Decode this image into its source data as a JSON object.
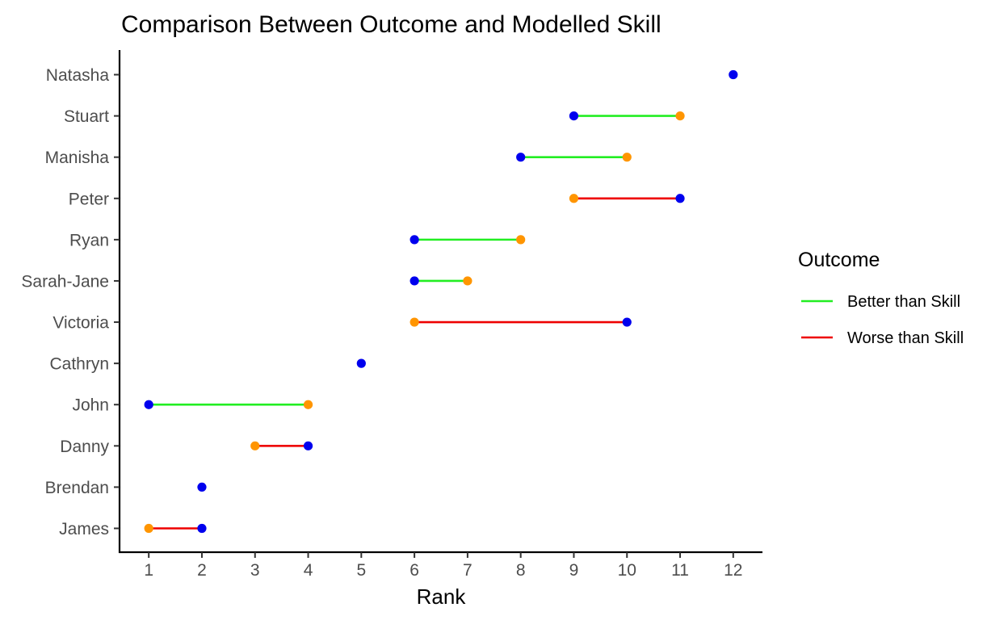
{
  "chart_data": {
    "type": "dumbbell",
    "title": "Comparison Between Outcome and Modelled Skill",
    "xlabel": "Rank",
    "ylabel": "",
    "xlim": [
      0.45,
      12.55
    ],
    "x_ticks": [
      1,
      2,
      3,
      4,
      5,
      6,
      7,
      8,
      9,
      10,
      11,
      12
    ],
    "grid": false,
    "legend": {
      "title": "Outcome",
      "position": "right",
      "entries": [
        {
          "label": "Better than Skill",
          "color": "#22ee22"
        },
        {
          "label": "Worse than Skill",
          "color": "#ee0000"
        }
      ]
    },
    "point_colors": {
      "skill": "#0000ee",
      "outcome": "#ff9500"
    },
    "categories": [
      "Natasha",
      "Stuart",
      "Manisha",
      "Peter",
      "Ryan",
      "Sarah-Jane",
      "Victoria",
      "Cathryn",
      "John",
      "Danny",
      "Brendan",
      "James"
    ],
    "rows": [
      {
        "name": "Natasha",
        "skill": 12,
        "outcome": 12,
        "group": "same"
      },
      {
        "name": "Stuart",
        "skill": 9,
        "outcome": 11,
        "group": "Better than Skill"
      },
      {
        "name": "Manisha",
        "skill": 8,
        "outcome": 10,
        "group": "Better than Skill"
      },
      {
        "name": "Peter",
        "skill": 11,
        "outcome": 9,
        "group": "Worse than Skill"
      },
      {
        "name": "Ryan",
        "skill": 6,
        "outcome": 8,
        "group": "Better than Skill"
      },
      {
        "name": "Sarah-Jane",
        "skill": 6,
        "outcome": 7,
        "group": "Better than Skill"
      },
      {
        "name": "Victoria",
        "skill": 10,
        "outcome": 6,
        "group": "Worse than Skill"
      },
      {
        "name": "Cathryn",
        "skill": 5,
        "outcome": 5,
        "group": "same"
      },
      {
        "name": "John",
        "skill": 1,
        "outcome": 4,
        "group": "Better than Skill"
      },
      {
        "name": "Danny",
        "skill": 4,
        "outcome": 3,
        "group": "Worse than Skill"
      },
      {
        "name": "Brendan",
        "skill": 2,
        "outcome": 2,
        "group": "same"
      },
      {
        "name": "James",
        "skill": 2,
        "outcome": 1,
        "group": "Worse than Skill"
      }
    ]
  }
}
